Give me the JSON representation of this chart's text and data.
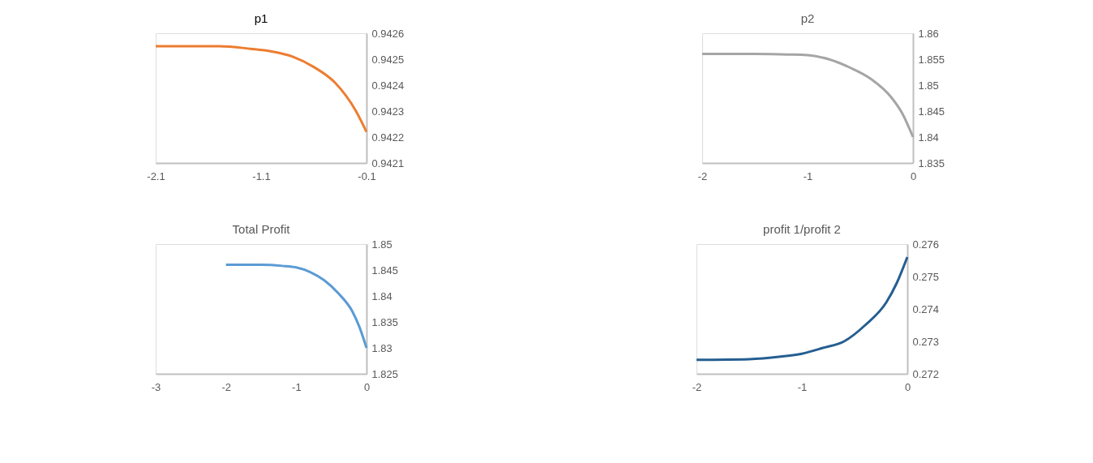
{
  "chart_data": [
    {
      "type": "line",
      "title": "p1",
      "x": [
        -2.1,
        -1.8,
        -1.5,
        -1.2,
        -1.0,
        -0.8,
        -0.6,
        -0.4,
        -0.2,
        -0.1
      ],
      "series": [
        {
          "color": "#ed7d31",
          "values": [
            0.94255,
            0.94255,
            0.94255,
            0.94254,
            0.94253,
            0.94251,
            0.94247,
            0.94241,
            0.9423,
            0.94222
          ]
        }
      ],
      "xlim": [
        -2.1,
        -0.1
      ],
      "xticks": [
        -2.1,
        -1.1,
        -0.1
      ],
      "ylim": [
        0.9421,
        0.9426
      ],
      "yticks": [
        0.9421,
        0.9422,
        0.9423,
        0.9424,
        0.9425,
        0.9426
      ]
    },
    {
      "type": "line",
      "title": "p2",
      "x": [
        -2,
        -1.5,
        -1.2,
        -1.0,
        -0.8,
        -0.6,
        -0.4,
        -0.2,
        -0.1,
        0
      ],
      "series": [
        {
          "color": "#a5a5a5",
          "values": [
            1.856,
            1.856,
            1.8559,
            1.8558,
            1.855,
            1.8534,
            1.8512,
            1.8475,
            1.8445,
            1.84
          ]
        }
      ],
      "xlim": [
        -2,
        0
      ],
      "xticks": [
        -2,
        -1,
        0
      ],
      "ylim": [
        1.835,
        1.86
      ],
      "yticks": [
        1.835,
        1.84,
        1.845,
        1.85,
        1.855,
        1.86
      ]
    },
    {
      "type": "line",
      "title": "Total Profit",
      "x": [
        -2,
        -1.5,
        -1.2,
        -1.0,
        -0.8,
        -0.6,
        -0.4,
        -0.2,
        -0.1,
        0
      ],
      "series": [
        {
          "color": "#5b9bd5",
          "values": [
            1.846,
            1.846,
            1.8458,
            1.8455,
            1.8446,
            1.843,
            1.8405,
            1.837,
            1.834,
            1.83
          ]
        }
      ],
      "xlim": [
        -3,
        0
      ],
      "xticks": [
        -3,
        -2,
        -1,
        0
      ],
      "ylim": [
        1.825,
        1.85
      ],
      "yticks": [
        1.825,
        1.83,
        1.835,
        1.84,
        1.845,
        1.85
      ]
    },
    {
      "type": "line",
      "title": "profit 1/profit 2",
      "x": [
        -2,
        -1.5,
        -1.2,
        -1.0,
        -0.8,
        -0.6,
        -0.4,
        -0.2,
        -0.1,
        0
      ],
      "series": [
        {
          "color": "#255e91",
          "values": [
            0.27243,
            0.27245,
            0.27253,
            0.27262,
            0.2728,
            0.273,
            0.2735,
            0.2742,
            0.2748,
            0.2756
          ]
        }
      ],
      "xlim": [
        -2,
        0
      ],
      "xticks": [
        -2,
        -1,
        0
      ],
      "ylim": [
        0.272,
        0.276
      ],
      "yticks": [
        0.272,
        0.273,
        0.274,
        0.275,
        0.276
      ]
    }
  ]
}
